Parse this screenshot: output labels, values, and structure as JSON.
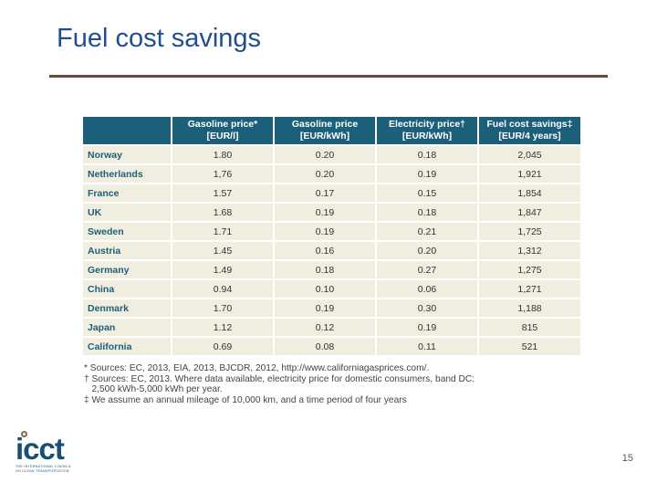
{
  "slide": {
    "title": "Fuel cost savings",
    "page_number": "15"
  },
  "table": {
    "headers": [
      {
        "line1": "",
        "line2": ""
      },
      {
        "line1": "Gasoline price*",
        "line2": "[EUR/l]"
      },
      {
        "line1": "Gasoline price",
        "line2": "[EUR/kWh]"
      },
      {
        "line1": "Electricity price†",
        "line2": "[EUR/kWh]"
      },
      {
        "line1": "Fuel cost savings‡",
        "line2": "[EUR/4 years]"
      }
    ],
    "rows": [
      [
        "Norway",
        "1.80",
        "0.20",
        "0.18",
        "2,045"
      ],
      [
        "Netherlands",
        "1,76",
        "0.20",
        "0.19",
        "1,921"
      ],
      [
        "France",
        "1.57",
        "0.17",
        "0.15",
        "1,854"
      ],
      [
        "UK",
        "1.68",
        "0.19",
        "0.18",
        "1,847"
      ],
      [
        "Sweden",
        "1.71",
        "0.19",
        "0.21",
        "1,725"
      ],
      [
        "Austria",
        "1.45",
        "0.16",
        "0.20",
        "1,312"
      ],
      [
        "Germany",
        "1.49",
        "0.18",
        "0.27",
        "1,275"
      ],
      [
        "China",
        "0.94",
        "0.10",
        "0.06",
        "1,271"
      ],
      [
        "Denmark",
        "1.70",
        "0.19",
        "0.30",
        "1,188"
      ],
      [
        "Japan",
        "1.12",
        "0.12",
        "0.19",
        "815"
      ],
      [
        "California",
        "0.69",
        "0.08",
        "0.11",
        "521"
      ]
    ]
  },
  "footnotes": [
    "* Sources: EC, 2013, EIA, 2013, BJCDR, 2012, http://www.californiagasprices.com/.",
    "† Sources: EC, 2013. Where data available, electricity price for domestic consumers, band DC:",
    "   2,500 kWh-5,000 kWh per year.",
    "‡ We assume an annual mileage of 10,000 km, and a time period of four years"
  ],
  "logo": {
    "wordmark": "icct",
    "tagline_1": "THE INTERNATIONAL COUNCIL",
    "tagline_2": "ON CLEAN TRANSPORTATION"
  },
  "colors": {
    "title": "#1f4f8f",
    "rule": "#6e4a36",
    "header_bg": "#1c5f7a",
    "cell_bg": "#f1eddf",
    "country_text": "#1c5f7a"
  }
}
